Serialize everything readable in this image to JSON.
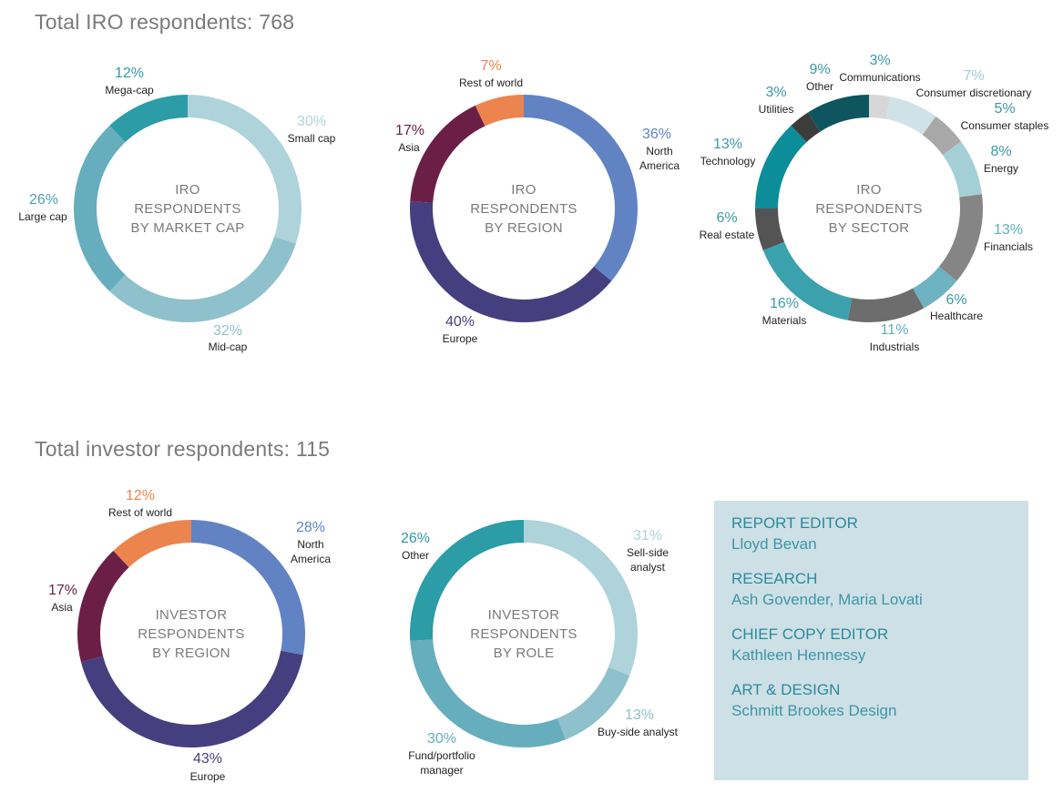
{
  "sections": {
    "iro_title": "Total IRO respondents: 768",
    "investor_title": "Total investor respondents: 115"
  },
  "chart_data": [
    {
      "id": "iro-market-cap",
      "type": "pie",
      "variant": "donut",
      "center_text": [
        "IRO",
        "RESPONDENTS",
        "BY MARKET CAP"
      ],
      "slices": [
        {
          "label": "Small cap",
          "value": 30,
          "pct_text": "30%",
          "color": "#aed3da",
          "pct_color": "#aed3da"
        },
        {
          "label": "Mid-cap",
          "value": 32,
          "pct_text": "32%",
          "color": "#8ec1cb",
          "pct_color": "#8ec1cb"
        },
        {
          "label": "Large cap",
          "value": 26,
          "pct_text": "26%",
          "color": "#66aebd",
          "pct_color": "#4aa3b3"
        },
        {
          "label": "Mega-cap",
          "value": 12,
          "pct_text": "12%",
          "color": "#2c9ca7",
          "pct_color": "#2c9ca7"
        }
      ]
    },
    {
      "id": "iro-region",
      "type": "pie",
      "variant": "donut",
      "center_text": [
        "IRO",
        "RESPONDENTS",
        "BY REGION"
      ],
      "slices": [
        {
          "label": "North America",
          "value": 36,
          "pct_text": "36%",
          "color": "#6183c4",
          "pct_color": "#6183c4"
        },
        {
          "label": "Europe",
          "value": 40,
          "pct_text": "40%",
          "color": "#453f80",
          "pct_color": "#453f80"
        },
        {
          "label": "Asia",
          "value": 17,
          "pct_text": "17%",
          "color": "#6b1f47",
          "pct_color": "#6b1f47"
        },
        {
          "label": "Rest of world",
          "value": 7,
          "pct_text": "7%",
          "color": "#ec844d",
          "pct_color": "#ec844d"
        }
      ]
    },
    {
      "id": "iro-sector",
      "type": "pie",
      "variant": "donut",
      "center_text": [
        "IRO",
        "RESPONDENTS",
        "BY SECTOR"
      ],
      "slices": [
        {
          "label": "Communications",
          "value": 3,
          "pct_text": "3%",
          "color": "#d7d7d7",
          "pct_color": "#3a9aa8"
        },
        {
          "label": "Consumer discretionary",
          "value": 7,
          "pct_text": "7%",
          "color": "#cfe2e8",
          "pct_color": "#9fcbd4"
        },
        {
          "label": "Consumer staples",
          "value": 5,
          "pct_text": "5%",
          "color": "#a8a8a8",
          "pct_color": "#3a9aa8"
        },
        {
          "label": "Energy",
          "value": 8,
          "pct_text": "8%",
          "color": "#a5cfd6",
          "pct_color": "#3a9aa8"
        },
        {
          "label": "Financials",
          "value": 13,
          "pct_text": "13%",
          "color": "#858585",
          "pct_color": "#5fb0bf"
        },
        {
          "label": "Healthcare",
          "value": 6,
          "pct_text": "6%",
          "color": "#6db3c1",
          "pct_color": "#3a9aa8"
        },
        {
          "label": "Industrials",
          "value": 11,
          "pct_text": "11%",
          "color": "#6d6d6d",
          "pct_color": "#5fb0bf"
        },
        {
          "label": "Materials",
          "value": 16,
          "pct_text": "16%",
          "color": "#3ba1ad",
          "pct_color": "#3a9aa8"
        },
        {
          "label": "Real estate",
          "value": 6,
          "pct_text": "6%",
          "color": "#545454",
          "pct_color": "#3a9aa8"
        },
        {
          "label": "Technology",
          "value": 13,
          "pct_text": "13%",
          "color": "#0c8d9a",
          "pct_color": "#3a9aa8"
        },
        {
          "label": "Utilities",
          "value": 3,
          "pct_text": "3%",
          "color": "#3c3c3c",
          "pct_color": "#3a9aa8"
        },
        {
          "label": "Other",
          "value": 9,
          "pct_text": "9%",
          "color": "#0e5560",
          "pct_color": "#3a9aa8"
        }
      ]
    },
    {
      "id": "investor-region",
      "type": "pie",
      "variant": "donut",
      "center_text": [
        "INVESTOR",
        "RESPONDENTS",
        "BY REGION"
      ],
      "slices": [
        {
          "label": "North America",
          "value": 28,
          "pct_text": "28%",
          "color": "#6183c4",
          "pct_color": "#6183c4"
        },
        {
          "label": "Europe",
          "value": 43,
          "pct_text": "43%",
          "color": "#453f80",
          "pct_color": "#453f80"
        },
        {
          "label": "Asia",
          "value": 17,
          "pct_text": "17%",
          "color": "#6b1f47",
          "pct_color": "#6b1f47"
        },
        {
          "label": "Rest of world",
          "value": 12,
          "pct_text": "12%",
          "color": "#ec844d",
          "pct_color": "#ec844d"
        }
      ]
    },
    {
      "id": "investor-role",
      "type": "pie",
      "variant": "donut",
      "center_text": [
        "INVESTOR",
        "RESPONDENTS",
        "BY ROLE"
      ],
      "slices": [
        {
          "label": "Sell-side analyst",
          "value": 31,
          "pct_text": "31%",
          "color": "#aed3da",
          "pct_color": "#aed3da"
        },
        {
          "label": "Buy-side analyst",
          "value": 13,
          "pct_text": "13%",
          "color": "#8ec1cb",
          "pct_color": "#8ec1cb"
        },
        {
          "label": "Fund/portfolio manager",
          "value": 30,
          "pct_text": "30%",
          "color": "#66aebd",
          "pct_color": "#66aebd"
        },
        {
          "label": "Other",
          "value": 26,
          "pct_text": "26%",
          "color": "#2c9ca7",
          "pct_color": "#2c9ca7"
        }
      ]
    }
  ],
  "credits": [
    {
      "role": "REPORT EDITOR",
      "name": "Lloyd Bevan"
    },
    {
      "role": "RESEARCH",
      "name": "Ash Govender, Maria Lovati"
    },
    {
      "role": "CHIEF COPY EDITOR",
      "name": "Kathleen Hennessy"
    },
    {
      "role": "ART & DESIGN",
      "name": "Schmitt Brookes Design"
    }
  ]
}
